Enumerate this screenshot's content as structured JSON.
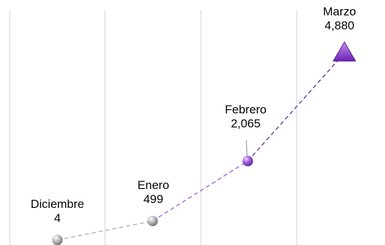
{
  "chart_data": {
    "type": "line",
    "categories": [
      "Diciembre",
      "Enero",
      "Febrero",
      "Marzo"
    ],
    "values": [
      4,
      499,
      2065,
      4880
    ],
    "value_labels": [
      "4",
      "499",
      "2,065",
      "4,880"
    ],
    "title": "",
    "xlabel": "",
    "ylabel": "",
    "ylim": [
      0,
      5000
    ],
    "grid": "vertical",
    "legend": "none",
    "markers": [
      "sphere",
      "sphere",
      "sphere",
      "triangle"
    ],
    "segment_colors": [
      "#a9a9a9",
      "#9b59d6",
      "#5a2d91"
    ],
    "point_colors": [
      "#a6a6a6",
      "#a6a6a6",
      "#9b59d6",
      "#7b2fbe"
    ]
  }
}
